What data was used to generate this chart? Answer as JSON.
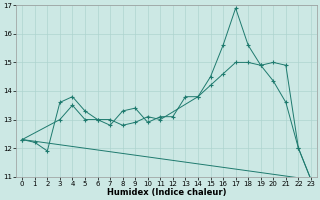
{
  "xlabel": "Humidex (Indice chaleur)",
  "bg_color": "#cce8e4",
  "grid_color": "#aed4cf",
  "line_color": "#1e7a6e",
  "xlim": [
    -0.5,
    23.5
  ],
  "ylim": [
    11,
    17
  ],
  "yticks": [
    11,
    12,
    13,
    14,
    15,
    16,
    17
  ],
  "xticks": [
    0,
    1,
    2,
    3,
    4,
    5,
    6,
    7,
    8,
    9,
    10,
    11,
    12,
    13,
    14,
    15,
    16,
    17,
    18,
    19,
    20,
    21,
    22,
    23
  ],
  "series1": [
    [
      0,
      12.3
    ],
    [
      1,
      12.2
    ],
    [
      2,
      11.9
    ],
    [
      3,
      13.6
    ],
    [
      4,
      13.8
    ],
    [
      5,
      13.3
    ],
    [
      6,
      13.0
    ],
    [
      7,
      12.8
    ],
    [
      8,
      13.3
    ],
    [
      9,
      13.4
    ],
    [
      10,
      12.9
    ],
    [
      11,
      13.1
    ],
    [
      12,
      13.1
    ],
    [
      13,
      13.8
    ],
    [
      14,
      13.8
    ],
    [
      15,
      14.5
    ],
    [
      16,
      15.6
    ],
    [
      17,
      16.9
    ],
    [
      18,
      15.6
    ],
    [
      19,
      14.9
    ],
    [
      20,
      14.35
    ],
    [
      21,
      13.6
    ],
    [
      22,
      12.0
    ],
    [
      23,
      10.9
    ]
  ],
  "series2": [
    [
      0,
      12.3
    ],
    [
      23,
      10.9
    ]
  ],
  "series3": [
    [
      0,
      12.3
    ],
    [
      3,
      13.0
    ],
    [
      4,
      13.5
    ],
    [
      5,
      13.0
    ],
    [
      6,
      13.0
    ],
    [
      7,
      13.0
    ],
    [
      8,
      12.8
    ],
    [
      9,
      12.9
    ],
    [
      10,
      13.1
    ],
    [
      11,
      13.0
    ],
    [
      14,
      13.8
    ],
    [
      15,
      14.2
    ],
    [
      16,
      14.6
    ],
    [
      17,
      15.0
    ],
    [
      18,
      15.0
    ],
    [
      19,
      14.9
    ],
    [
      20,
      15.0
    ],
    [
      21,
      14.9
    ],
    [
      22,
      12.0
    ],
    [
      23,
      10.9
    ]
  ]
}
